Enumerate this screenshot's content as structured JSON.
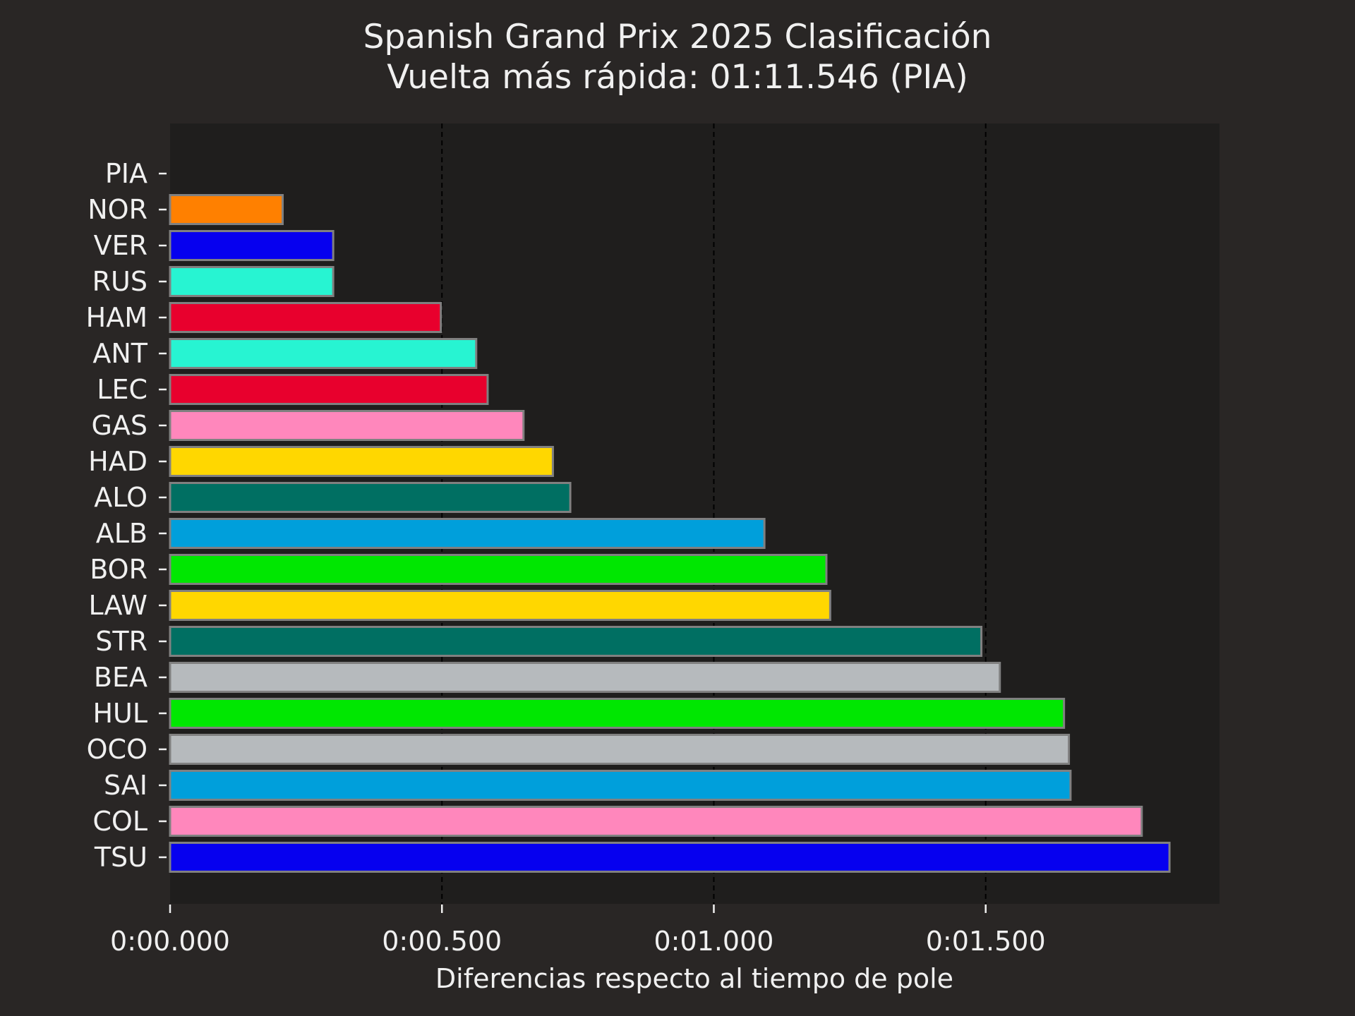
{
  "chart_data": {
    "type": "bar",
    "orientation": "horizontal",
    "title": [
      "Spanish Grand Prix 2025 Clasificación",
      "Vuelta más rápida: 01:11.546 (PIA)"
    ],
    "xlabel": "Diferencias respecto al tiempo de pole",
    "ylabel": "",
    "xlim": [
      0,
      1.93
    ],
    "xticks": [
      0,
      0.5,
      1.0,
      1.5
    ],
    "xtick_labels": [
      "0:00.000",
      "0:00.500",
      "0:01.000",
      "0:01.500"
    ],
    "grid": "x, dashed, at major ticks",
    "categories": [
      "PIA",
      "NOR",
      "VER",
      "RUS",
      "HAM",
      "ANT",
      "LEC",
      "GAS",
      "HAD",
      "ALO",
      "ALB",
      "BOR",
      "LAW",
      "STR",
      "BEA",
      "HUL",
      "OCO",
      "SAI",
      "COL",
      "TSU"
    ],
    "values": [
      0.0,
      0.207,
      0.3,
      0.3,
      0.498,
      0.563,
      0.584,
      0.65,
      0.704,
      0.736,
      1.093,
      1.207,
      1.214,
      1.492,
      1.526,
      1.644,
      1.653,
      1.656,
      1.787,
      1.838
    ],
    "colors": [
      "#ff8000",
      "#ff8000",
      "#0600ef",
      "#27f4d2",
      "#e8002d",
      "#27f4d2",
      "#e8002d",
      "#ff87bc",
      "#ffd700",
      "#006f62",
      "#009fdb",
      "#00e701",
      "#ffd700",
      "#006f62",
      "#b6babd",
      "#00e701",
      "#b6babd",
      "#009fdb",
      "#ff87bc",
      "#0600ef"
    ]
  },
  "colors": {
    "figure_background": "#292625",
    "plot_background": "#1f1e1d",
    "text": "#f0f0f0",
    "bar_edge": "#808080",
    "grid": "#000000"
  }
}
